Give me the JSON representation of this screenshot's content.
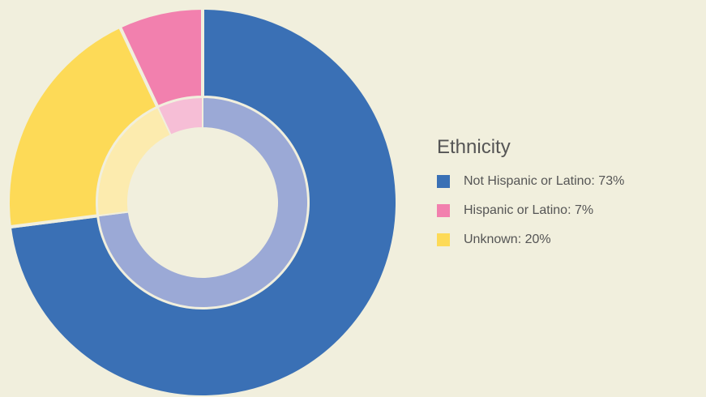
{
  "chart_data": {
    "type": "pie",
    "title": "Ethnicity",
    "legend_position": "right",
    "series": [
      {
        "name": "Not Hispanic or Latino",
        "label": "Not Hispanic or Latino: 73%",
        "value": 73,
        "color": "#3a70b5",
        "inner_color": "#9ba9d6"
      },
      {
        "name": "Hispanic or Latino",
        "label": "Hispanic or Latino: 7%",
        "value": 7,
        "color": "#f280ae",
        "inner_color": "#f6bed6"
      },
      {
        "name": "Unknown",
        "label": "Unknown: 20%",
        "value": 20,
        "color": "#fdda57",
        "inner_color": "#fcebae"
      }
    ]
  }
}
